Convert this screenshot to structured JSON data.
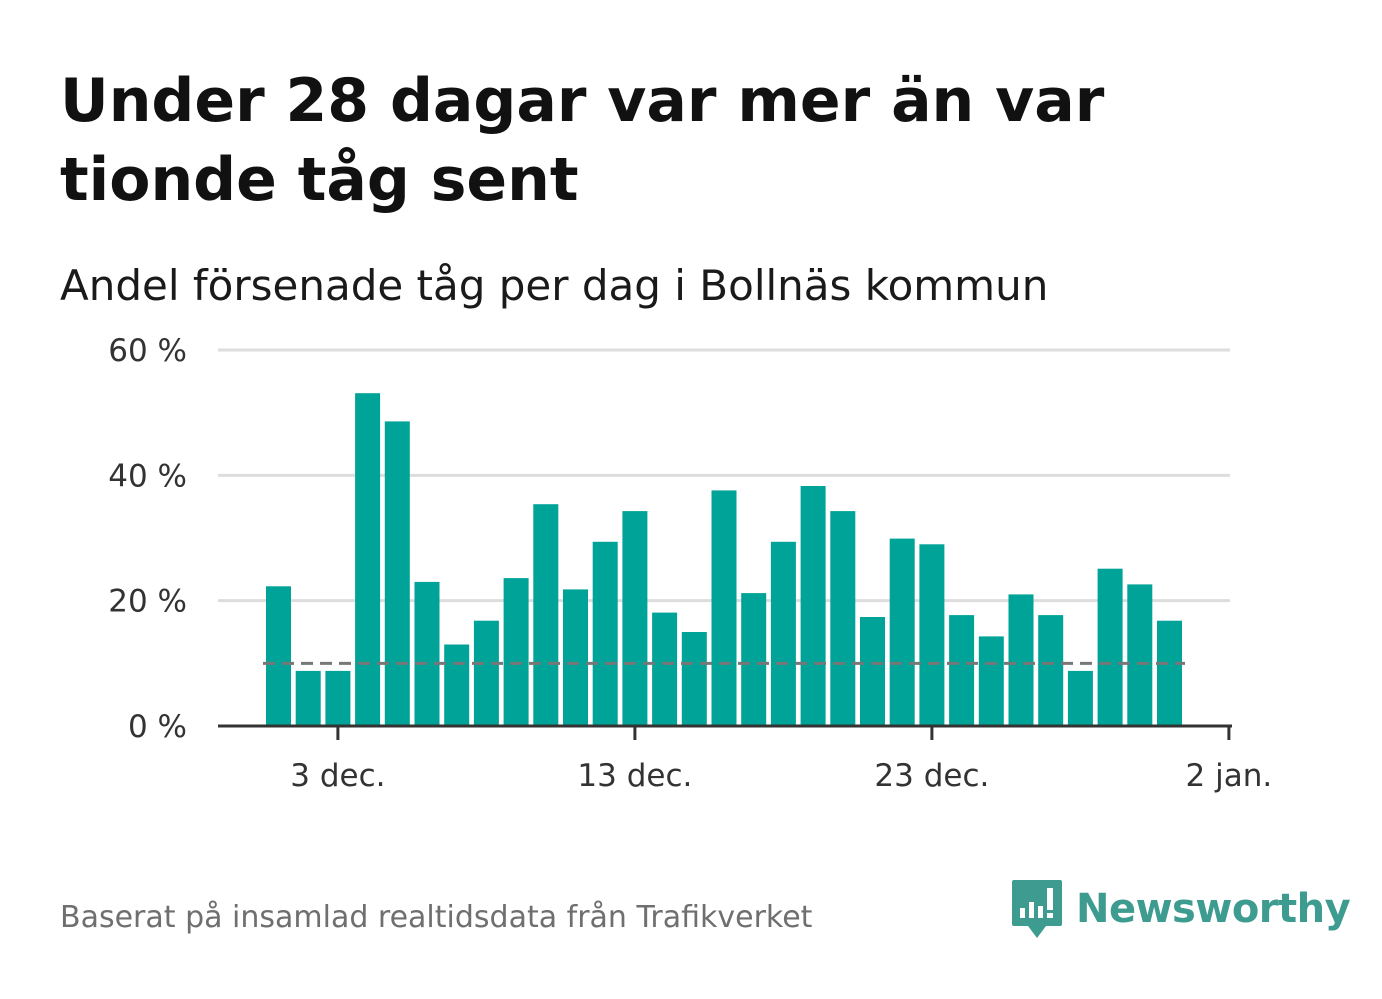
{
  "title": "Under 28 dagar var mer än var tionde tåg sent",
  "subtitle": "Andel försenade tåg per dag i Bollnäs kommun",
  "source": "Baserat på insamlad realtidsdata från Trafikverket",
  "brand": {
    "name": "Newsworthy",
    "icon": "newsworthy-logo-icon",
    "color": "#3e9b90"
  },
  "colors": {
    "bar": "#00a398",
    "grid": "#dddddd",
    "axis": "#333333",
    "reference": "#777777"
  },
  "chart_data": {
    "type": "bar",
    "title": "",
    "xlabel": "",
    "ylabel": "",
    "x": [
      "2023-12-01",
      "2023-12-02",
      "2023-12-03",
      "2023-12-04",
      "2023-12-05",
      "2023-12-06",
      "2023-12-07",
      "2023-12-08",
      "2023-12-09",
      "2023-12-10",
      "2023-12-11",
      "2023-12-12",
      "2023-12-13",
      "2023-12-14",
      "2023-12-15",
      "2023-12-16",
      "2023-12-17",
      "2023-12-18",
      "2023-12-19",
      "2023-12-20",
      "2023-12-21",
      "2023-12-22",
      "2023-12-23",
      "2023-12-24",
      "2023-12-25",
      "2023-12-26",
      "2023-12-27",
      "2023-12-28",
      "2023-12-29",
      "2023-12-30",
      "2023-12-31",
      "2024-01-01"
    ],
    "values": [
      22.3,
      8.8,
      8.8,
      53.1,
      48.6,
      23.0,
      13.0,
      16.8,
      23.6,
      35.4,
      21.8,
      29.4,
      34.3,
      18.1,
      15.0,
      37.6,
      21.2,
      29.4,
      38.3,
      34.3,
      17.4,
      29.9,
      29.0,
      17.7,
      14.3,
      21.0,
      17.7,
      8.8,
      25.1,
      22.6,
      16.8,
      0
    ],
    "ylim": [
      0,
      60
    ],
    "y_ticks": [
      0,
      20,
      40,
      60
    ],
    "y_tick_labels": [
      "0 %",
      "20 %",
      "40 %",
      "60 %"
    ],
    "x_ticks": [
      "2023-12-03",
      "2023-12-13",
      "2023-12-23",
      "2024-01-02"
    ],
    "x_tick_labels": [
      "3 dec.",
      "13 dec.",
      "23 dec.",
      "2 jan."
    ],
    "reference_line": 10,
    "reference_style": "dashed",
    "grid": true
  }
}
